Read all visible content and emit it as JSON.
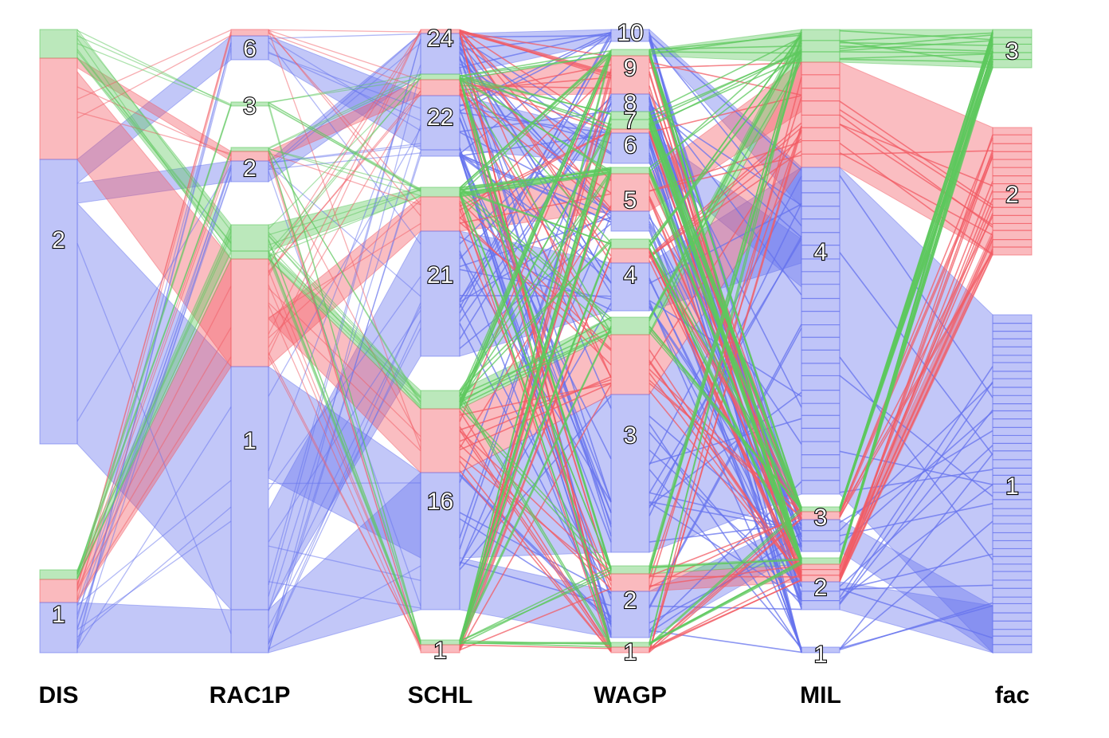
{
  "chart_data": {
    "type": "parallel-sets",
    "axes": [
      {
        "name": "DIS",
        "categories": [
          {
            "label": "2",
            "share": 0.54
          },
          {
            "label": "1",
            "share": 0.1
          }
        ]
      },
      {
        "name": "RAC1P",
        "categories": [
          {
            "label": "6",
            "share": 0.05
          },
          {
            "label": "3",
            "share": 0.02
          },
          {
            "label": "2",
            "share": 0.06
          },
          {
            "label": "1",
            "share": 0.54
          }
        ]
      },
      {
        "name": "SCHL",
        "categories": [
          {
            "label": "24",
            "share": 0.06
          },
          {
            "label": "22",
            "share": 0.13
          },
          {
            "label": "21",
            "share": 0.3
          },
          {
            "label": "16",
            "share": 0.3
          },
          {
            "label": "1",
            "share": 0.01
          }
        ]
      },
      {
        "name": "WAGP",
        "categories": [
          {
            "label": "10",
            "share": 0.01
          },
          {
            "label": "9",
            "share": 0.05
          },
          {
            "label": "8",
            "share": 0.02
          },
          {
            "label": "7",
            "share": 0.01
          },
          {
            "label": "6",
            "share": 0.05
          },
          {
            "label": "5",
            "share": 0.08
          },
          {
            "label": "4",
            "share": 0.11
          },
          {
            "label": "3",
            "share": 0.27
          },
          {
            "label": "2",
            "share": 0.08
          },
          {
            "label": "1",
            "share": 0.01
          }
        ]
      },
      {
        "name": "MIL",
        "categories": [
          {
            "label": "4",
            "share": 0.74
          },
          {
            "label": "3",
            "share": 0.01
          },
          {
            "label": "2",
            "share": 0.07
          },
          {
            "label": "1",
            "share": 0.01
          }
        ]
      },
      {
        "name": "fac",
        "categories": [
          {
            "label": "3",
            "share": 0.06
          },
          {
            "label": "2",
            "share": 0.2
          },
          {
            "label": "1",
            "share": 0.54
          }
        ]
      }
    ],
    "colors": {
      "1": "#6673ee",
      "2": "#f25b63",
      "3": "#5ec85e"
    }
  }
}
